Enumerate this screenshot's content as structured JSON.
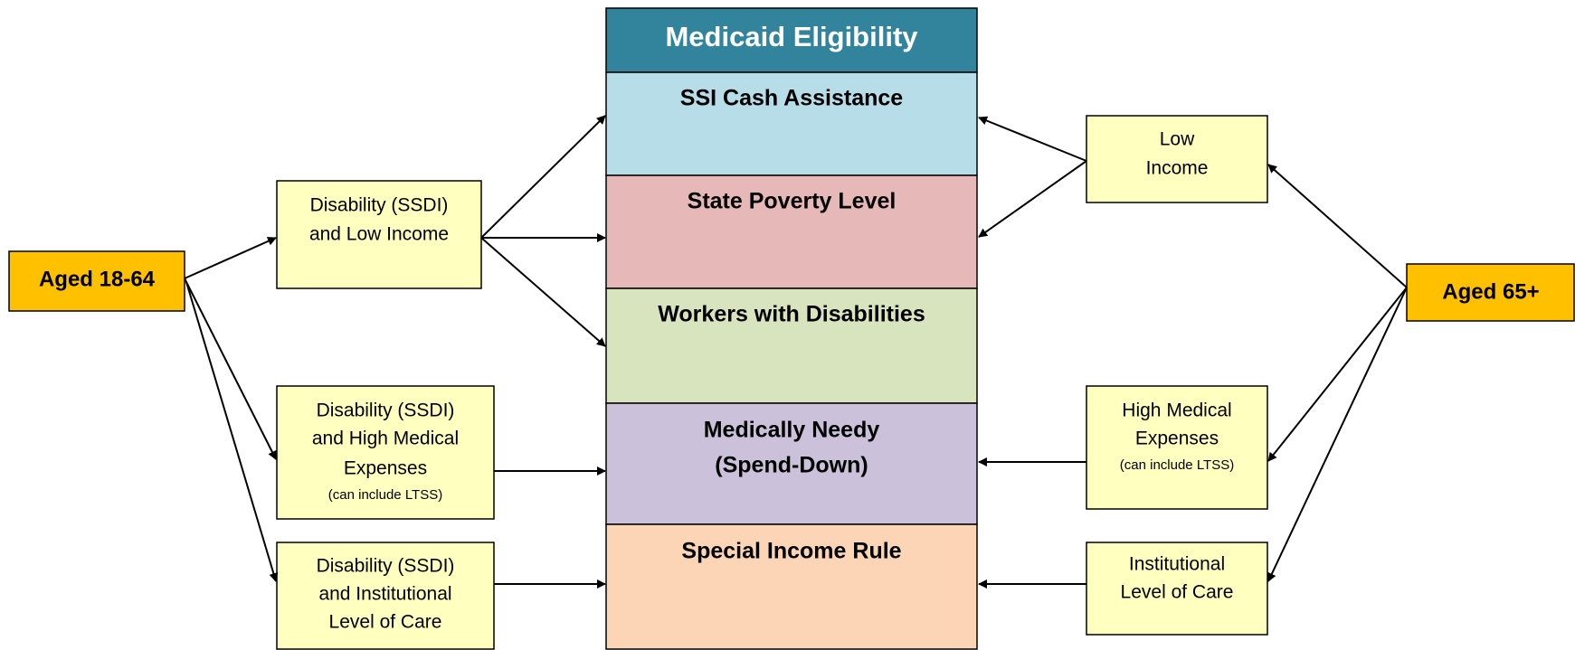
{
  "title": "Medicaid Eligibility",
  "categories": [
    {
      "label": "SSI Cash Assistance"
    },
    {
      "label": "State Poverty Level"
    },
    {
      "label": "Workers with Disabilities"
    },
    {
      "lines": [
        "Medically Needy",
        "(Spend-Down)"
      ]
    },
    {
      "label": "Special Income Rule"
    }
  ],
  "left": {
    "group": "Aged 18-64",
    "boxes": [
      {
        "lines": [
          "Disability (SSDI)",
          "and Low Income"
        ]
      },
      {
        "lines": [
          "Disability (SSDI)",
          "and High Medical",
          "Expenses"
        ],
        "note": "(can include LTSS)"
      },
      {
        "lines": [
          "Disability (SSDI)",
          "and Institutional",
          "Level of Care"
        ]
      }
    ]
  },
  "right": {
    "group": "Aged 65+",
    "boxes": [
      {
        "lines": [
          "Low",
          "Income"
        ]
      },
      {
        "lines": [
          "High Medical",
          "Expenses"
        ],
        "note": "(can include LTSS)"
      },
      {
        "lines": [
          "Institutional",
          "Level of Care"
        ]
      }
    ]
  }
}
